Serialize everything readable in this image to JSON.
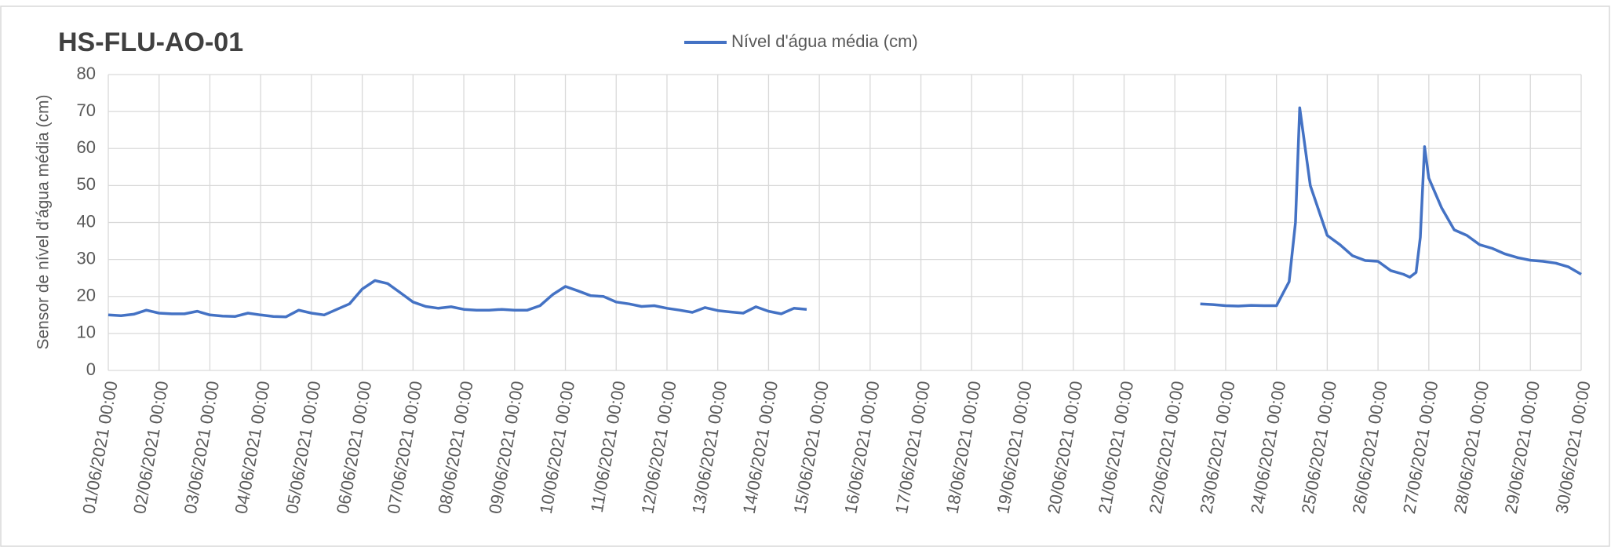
{
  "chart_data": {
    "type": "line",
    "title": "HS-FLU-AO-01",
    "y_label": "Sensor de nível d'água média (cm)",
    "ylim": [
      0,
      80
    ],
    "yticks": [
      0,
      10,
      20,
      30,
      40,
      50,
      60,
      70,
      80
    ],
    "xlim": [
      "01/06/2021 00:00",
      "30/06/2021 00:00"
    ],
    "xticks": [
      "01/06/2021 00:00",
      "02/06/2021 00:00",
      "03/06/2021 00:00",
      "04/06/2021 00:00",
      "05/06/2021 00:00",
      "06/06/2021 00:00",
      "07/06/2021 00:00",
      "08/06/2021 00:00",
      "09/06/2021 00:00",
      "10/06/2021 00:00",
      "11/06/2021 00:00",
      "12/06/2021 00:00",
      "13/06/2021 00:00",
      "14/06/2021 00:00",
      "15/06/2021 00:00",
      "16/06/2021 00:00",
      "17/06/2021 00:00",
      "18/06/2021 00:00",
      "19/06/2021 00:00",
      "20/06/2021 00:00",
      "21/06/2021 00:00",
      "22/06/2021 00:00",
      "23/06/2021 00:00",
      "24/06/2021 00:00",
      "25/06/2021 00:00",
      "26/06/2021 00:00",
      "27/06/2021 00:00",
      "28/06/2021 00:00",
      "29/06/2021 00:00",
      "30/06/2021 00:00"
    ],
    "grid": true,
    "legend": "top",
    "x": [
      "01/06/2021 00:00",
      "01/06/2021 06:00",
      "01/06/2021 12:00",
      "01/06/2021 18:00",
      "02/06/2021 00:00",
      "02/06/2021 06:00",
      "02/06/2021 12:00",
      "02/06/2021 18:00",
      "03/06/2021 00:00",
      "03/06/2021 06:00",
      "03/06/2021 12:00",
      "03/06/2021 18:00",
      "04/06/2021 00:00",
      "04/06/2021 06:00",
      "04/06/2021 12:00",
      "04/06/2021 18:00",
      "05/06/2021 00:00",
      "05/06/2021 06:00",
      "05/06/2021 12:00",
      "05/06/2021 18:00",
      "06/06/2021 00:00",
      "06/06/2021 06:00",
      "06/06/2021 12:00",
      "06/06/2021 18:00",
      "07/06/2021 00:00",
      "07/06/2021 06:00",
      "07/06/2021 12:00",
      "07/06/2021 18:00",
      "08/06/2021 00:00",
      "08/06/2021 06:00",
      "08/06/2021 12:00",
      "08/06/2021 18:00",
      "09/06/2021 00:00",
      "09/06/2021 06:00",
      "09/06/2021 12:00",
      "09/06/2021 18:00",
      "10/06/2021 00:00",
      "10/06/2021 06:00",
      "10/06/2021 12:00",
      "10/06/2021 18:00",
      "11/06/2021 00:00",
      "11/06/2021 06:00",
      "11/06/2021 12:00",
      "11/06/2021 18:00",
      "12/06/2021 00:00",
      "12/06/2021 06:00",
      "12/06/2021 12:00",
      "12/06/2021 18:00",
      "13/06/2021 00:00",
      "13/06/2021 06:00",
      "13/06/2021 12:00",
      "13/06/2021 18:00",
      "14/06/2021 00:00",
      "14/06/2021 06:00",
      "14/06/2021 12:00",
      "14/06/2021 18:00",
      "18/06/2021 00:00",
      "22/06/2021 12:00",
      "22/06/2021 18:00",
      "23/06/2021 00:00",
      "23/06/2021 06:00",
      "23/06/2021 12:00",
      "23/06/2021 18:00",
      "24/06/2021 00:00",
      "24/06/2021 06:00",
      "24/06/2021 09:00",
      "24/06/2021 11:00",
      "24/06/2021 16:00",
      "25/06/2021 00:00",
      "25/06/2021 06:00",
      "25/06/2021 12:00",
      "25/06/2021 18:00",
      "26/06/2021 00:00",
      "26/06/2021 06:00",
      "26/06/2021 12:00",
      "26/06/2021 15:00",
      "26/06/2021 18:00",
      "26/06/2021 20:00",
      "26/06/2021 22:00",
      "27/06/2021 00:00",
      "27/06/2021 06:00",
      "27/06/2021 12:00",
      "27/06/2021 18:00",
      "28/06/2021 00:00",
      "28/06/2021 06:00",
      "28/06/2021 12:00",
      "28/06/2021 18:00",
      "29/06/2021 00:00",
      "29/06/2021 06:00",
      "29/06/2021 12:00",
      "29/06/2021 18:00",
      "30/06/2021 00:00"
    ],
    "series": [
      {
        "name": "Nível d'água média (cm)",
        "color": "#4472c4",
        "values": [
          15.0,
          14.8,
          15.2,
          16.3,
          15.5,
          15.3,
          15.3,
          16.0,
          15.0,
          14.7,
          14.6,
          15.5,
          15.0,
          14.6,
          14.5,
          16.3,
          15.5,
          15.0,
          16.5,
          18.0,
          22.0,
          24.3,
          23.5,
          21.0,
          18.5,
          17.3,
          16.8,
          17.2,
          16.5,
          16.3,
          16.3,
          16.5,
          16.3,
          16.3,
          17.5,
          20.5,
          22.7,
          21.5,
          20.2,
          20.0,
          18.5,
          18.0,
          17.3,
          17.5,
          16.8,
          16.3,
          15.7,
          17.0,
          16.2,
          15.8,
          15.5,
          17.2,
          16.0,
          15.3,
          16.8,
          16.5,
          null,
          18.0,
          17.8,
          17.5,
          17.4,
          17.6,
          17.5,
          17.5,
          24.0,
          40.0,
          71.0,
          50.0,
          36.5,
          34.0,
          31.0,
          29.7,
          29.5,
          27.0,
          26.0,
          25.2,
          26.5,
          36.0,
          60.5,
          52.0,
          44.0,
          38.0,
          36.5,
          34.0,
          33.0,
          31.5,
          30.5,
          29.8,
          29.5,
          29.0,
          28.0,
          26.0
        ]
      }
    ]
  }
}
